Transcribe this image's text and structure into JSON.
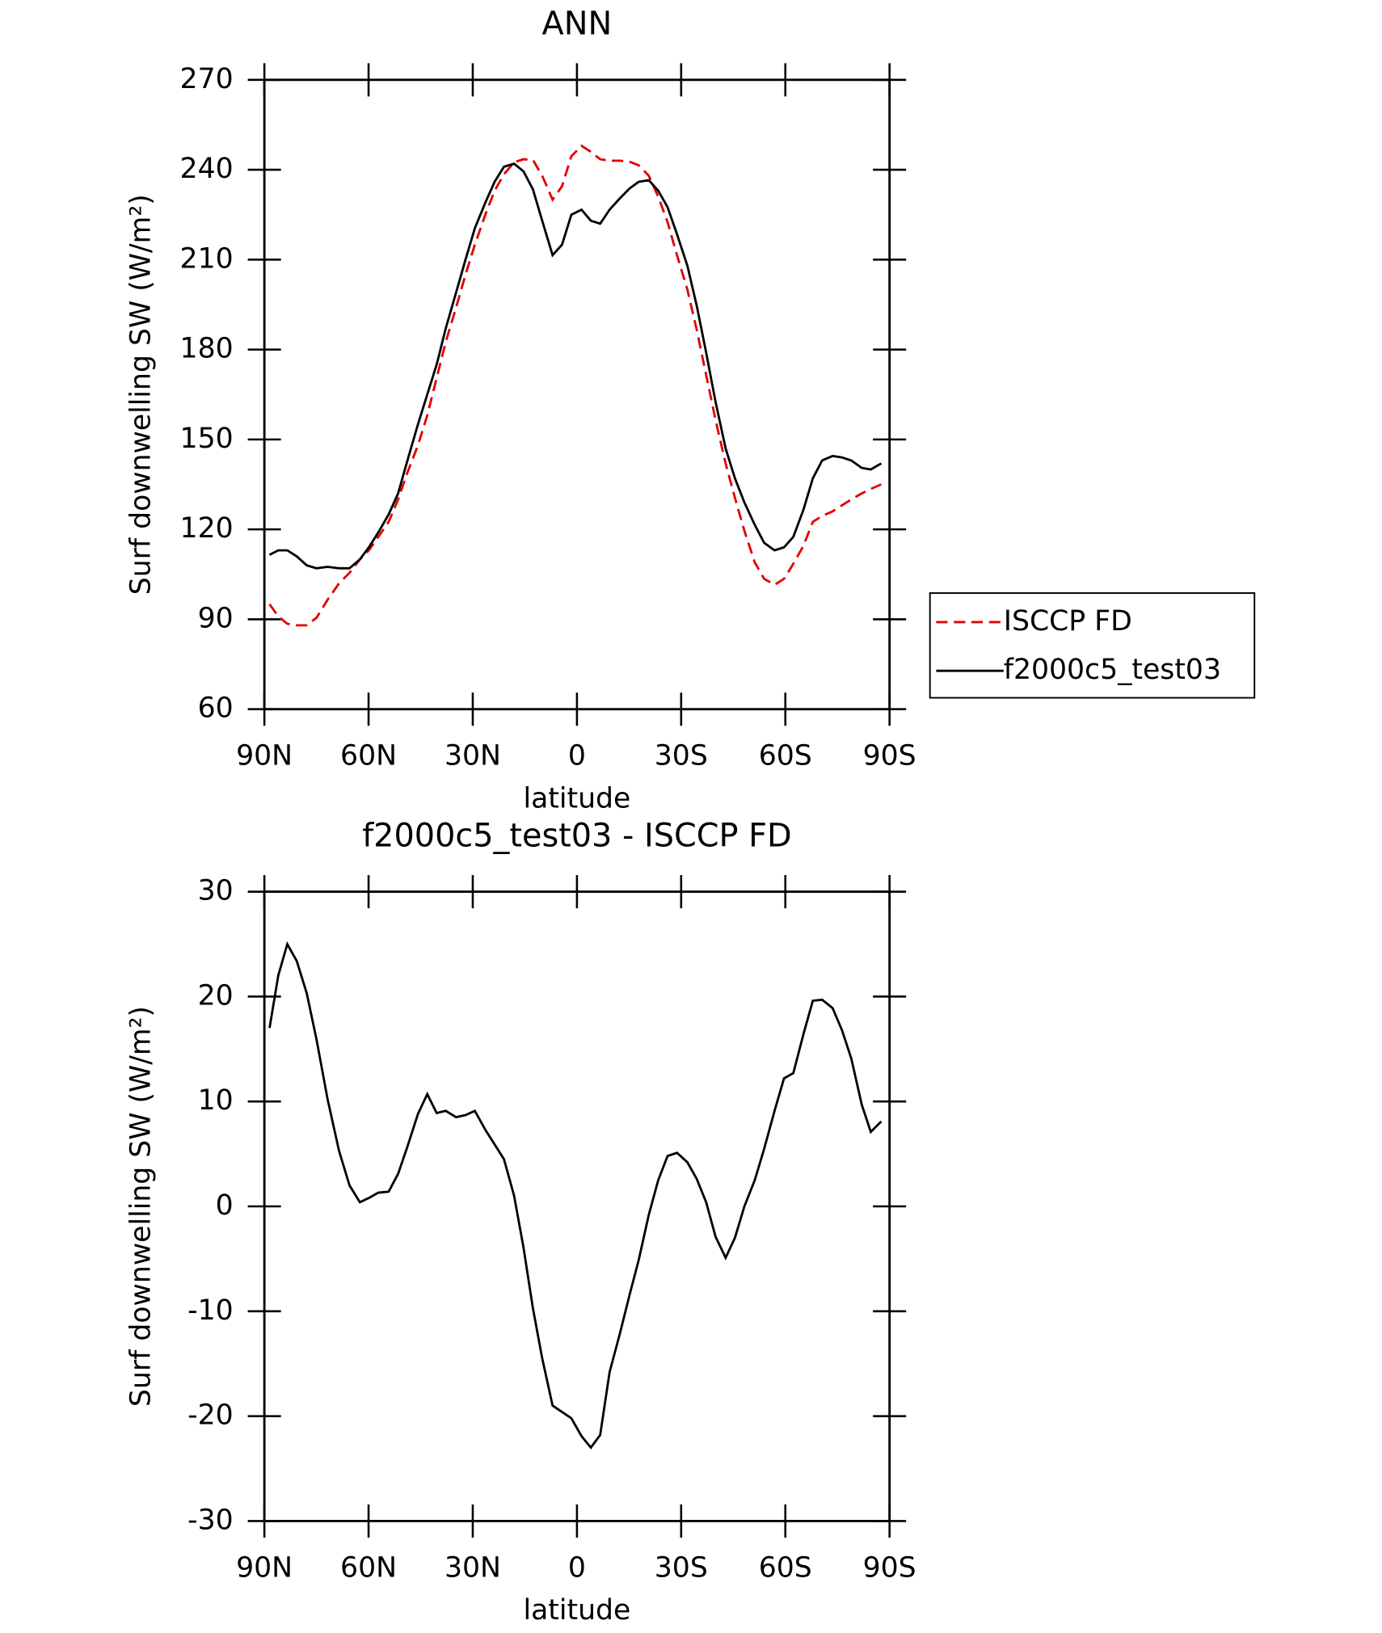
{
  "chart_data": [
    {
      "type": "line",
      "title": "ANN",
      "xlabel": "latitude",
      "ylabel": "Surf downwelling SW (W/m²)",
      "x": [
        88.5,
        86,
        83.4,
        80.7,
        77.8,
        75,
        71.8,
        68.5,
        65.5,
        62.5,
        59.9,
        57.2,
        54.2,
        51.5,
        48.8,
        45.8,
        43.1,
        40.4,
        37.8,
        34.8,
        32.1,
        29.4,
        26.4,
        23.7,
        21,
        18.1,
        15.4,
        12.7,
        10,
        7,
        4.3,
        1.6,
        -1.3,
        -4,
        -6.7,
        -9.4,
        -12.4,
        -15.1,
        -17.8,
        -20.7,
        -23.4,
        -26.1,
        -28.8,
        -31.8,
        -34.5,
        -37.2,
        -39.9,
        -42.8,
        -45.5,
        -48.2,
        -51.2,
        -53.9,
        -56.9,
        -59.6,
        -62.3,
        -65.2,
        -67.9,
        -70.6,
        -73.6,
        -76.3,
        -79,
        -82,
        -84.6,
        -87.6
      ],
      "series": [
        {
          "name": "ISCCP FD",
          "color": "#e00000",
          "dash": true,
          "values": [
            95,
            91,
            88.5,
            88,
            88,
            90.5,
            96.5,
            102,
            105.5,
            110,
            113,
            117.5,
            122.5,
            130,
            139,
            148,
            158,
            170.5,
            182.5,
            194,
            205,
            215,
            225,
            233,
            238.5,
            242.5,
            243.5,
            243.3,
            238,
            230,
            234.5,
            244.5,
            248,
            246,
            243.5,
            243,
            243,
            242.7,
            241.5,
            238,
            231,
            222.5,
            211.5,
            200,
            186.5,
            171.5,
            156.5,
            142,
            130.5,
            119.5,
            109,
            103.5,
            101.5,
            103.5,
            108.5,
            114.5,
            122.5,
            124.5,
            126,
            128,
            130,
            132,
            133.5,
            135
          ]
        },
        {
          "name": "f2000c5_test03",
          "color": "#000000",
          "dash": false,
          "values": [
            111.5,
            113,
            113,
            111,
            108,
            107,
            107.5,
            107,
            107,
            110,
            114,
            119,
            125,
            132,
            143,
            155,
            165,
            175,
            187,
            199,
            210,
            220.5,
            229,
            236,
            241,
            242,
            239.5,
            233.5,
            223,
            211.5,
            215,
            225,
            226.7,
            223,
            222,
            226.7,
            230.5,
            233.7,
            236,
            236.5,
            233,
            227.5,
            218.5,
            208,
            194.5,
            179,
            162.5,
            147,
            137,
            129,
            121.5,
            115.5,
            113,
            114,
            117.5,
            126.5,
            137,
            143,
            144.5,
            144,
            143,
            140.5,
            140,
            142
          ]
        }
      ],
      "xlim": [
        90,
        -90
      ],
      "xticks": [
        {
          "value": 90,
          "label": "90N"
        },
        {
          "value": 60,
          "label": "60N"
        },
        {
          "value": 30,
          "label": "30N"
        },
        0,
        {
          "value": -30,
          "label": "30S"
        },
        {
          "value": -60,
          "label": "60S"
        },
        {
          "value": -90,
          "label": "90S"
        }
      ],
      "ylim": [
        60,
        270
      ],
      "yticks": [
        60,
        90,
        120,
        150,
        180,
        210,
        240,
        270
      ],
      "legend": "right"
    },
    {
      "type": "line",
      "title": "f2000c5_test03 - ISCCP FD",
      "xlabel": "latitude",
      "ylabel": "Surf downwelling SW (W/m²)",
      "x": [
        88.5,
        86,
        83.4,
        80.7,
        77.8,
        75,
        71.8,
        68.5,
        65.5,
        62.5,
        59.9,
        57.2,
        54.2,
        51.5,
        48.8,
        45.8,
        43.1,
        40.4,
        37.8,
        34.8,
        32.1,
        29.4,
        26.4,
        23.7,
        21,
        18.1,
        15.4,
        12.7,
        10,
        7,
        4.3,
        1.6,
        -1.3,
        -4,
        -6.7,
        -9.4,
        -12.4,
        -15.1,
        -17.8,
        -20.7,
        -23.4,
        -26.1,
        -28.8,
        -31.8,
        -34.5,
        -37.2,
        -39.9,
        -42.8,
        -45.5,
        -48.2,
        -51.2,
        -53.9,
        -56.9,
        -59.6,
        -62.3,
        -65.2,
        -67.9,
        -70.6,
        -73.6,
        -76.3,
        -79,
        -82,
        -84.6,
        -87.6
      ],
      "series": [
        {
          "color": "#000000",
          "values": [
            17,
            22,
            25,
            23.4,
            20.3,
            15.9,
            10.2,
            5.3,
            2,
            0.4,
            0.8,
            1.3,
            1.4,
            3.1,
            5.7,
            8.8,
            10.7,
            8.9,
            9.1,
            8.5,
            8.7,
            9.1,
            7.3,
            5.9,
            4.5,
            1,
            -3.9,
            -9.7,
            -14.5,
            -19,
            -19.6,
            -20.2,
            -21.9,
            -23,
            -21.8,
            -15.8,
            -12.1,
            -8.5,
            -5.1,
            -0.8,
            2.5,
            4.8,
            5.1,
            4.2,
            2.6,
            0.4,
            -2.9,
            -4.9,
            -3,
            0,
            2.5,
            5.5,
            9.1,
            12.2,
            12.7,
            16.4,
            19.6,
            19.7,
            18.9,
            16.8,
            14.1,
            9.7,
            7.1,
            8.1
          ]
        }
      ],
      "xlim": [
        90,
        -90
      ],
      "xticks": [
        {
          "value": 90,
          "label": "90N"
        },
        {
          "value": 60,
          "label": "60N"
        },
        {
          "value": 30,
          "label": "30N"
        },
        0,
        {
          "value": -30,
          "label": "30S"
        },
        {
          "value": -60,
          "label": "60S"
        },
        {
          "value": -90,
          "label": "90S"
        }
      ],
      "ylim": [
        -30,
        30
      ],
      "yticks": [
        -30,
        -20,
        -10,
        0,
        10,
        20,
        30
      ]
    }
  ]
}
